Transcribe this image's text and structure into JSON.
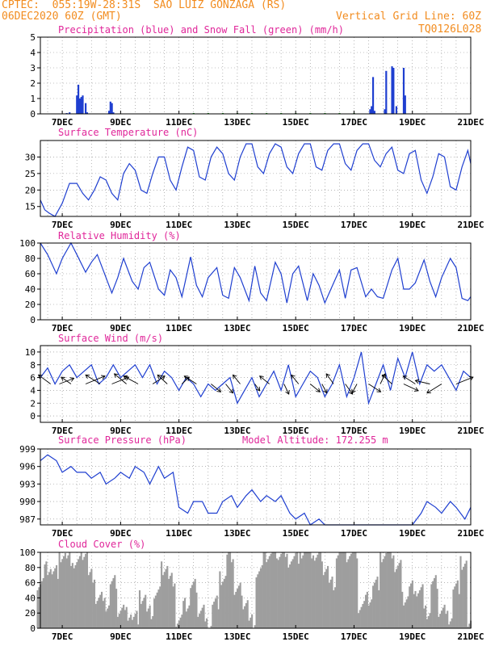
{
  "header": {
    "line1": "CPTEC:  055:19W-28:31S  SAO LUIZ GONZAGA (RS)",
    "line2": "06DEC2020 60Z (GMT)",
    "grid_note": "Vertical Grid Line: 60Z",
    "code": "TQ0126L028"
  },
  "colors": {
    "header": "#f28c1f",
    "title": "#e0279a",
    "line": "#1f3fd0",
    "snow": "#1a9a1a",
    "cloud": "#9e9e9e",
    "grid": "#888888"
  },
  "x_ticks": [
    "7DEC",
    "9DEC",
    "11DEC",
    "13DEC",
    "15DEC",
    "17DEC",
    "19DEC",
    "21DEC"
  ],
  "chart_data": [
    {
      "id": "precip",
      "type": "bar",
      "title": "Precipitation (blue) and Snow Fall (green) (mm/h)",
      "x_unit": "day (DEC 2020)",
      "xlim": [
        6.25,
        21
      ],
      "ylim": [
        0,
        5
      ],
      "yticks": [
        0,
        1,
        2,
        3,
        4,
        5
      ],
      "series": [
        {
          "name": "Precipitation",
          "color": "#1f3fd0",
          "x": [
            7.15,
            7.25,
            7.5,
            7.55,
            7.6,
            7.65,
            7.7,
            7.8,
            7.85,
            8.6,
            8.65,
            8.7,
            8.75,
            17.55,
            17.6,
            17.65,
            17.7,
            18.05,
            18.1,
            18.3,
            18.35,
            18.45,
            18.7,
            18.75
          ],
          "values": [
            0.05,
            0.1,
            1.2,
            1.9,
            1.0,
            1.1,
            1.2,
            0.7,
            0.1,
            0.2,
            0.8,
            0.7,
            0.1,
            0.3,
            0.5,
            2.4,
            0.2,
            0.3,
            2.8,
            3.1,
            3.0,
            0.5,
            3.0,
            1.2
          ]
        },
        {
          "name": "Snow Fall",
          "color": "#1a9a1a",
          "x": [
            11.5,
            12.0,
            12.5,
            13.0,
            13.5,
            14.0,
            14.5,
            15.0,
            15.5,
            16.0,
            16.5,
            17.0
          ],
          "values": [
            0.02,
            0.02,
            0.02,
            0.02,
            0.02,
            0.02,
            0.02,
            0.02,
            0.02,
            0.02,
            0.02,
            0.02
          ]
        }
      ]
    },
    {
      "id": "temp",
      "type": "line",
      "title": "Surface Temperature (nC)",
      "xlim": [
        6.25,
        21
      ],
      "ylim": [
        12,
        35
      ],
      "yticks": [
        15,
        20,
        25,
        30
      ],
      "series": [
        {
          "name": "",
          "x": [
            6.25,
            6.4,
            6.55,
            6.75,
            7.0,
            7.25,
            7.5,
            7.7,
            7.9,
            8.1,
            8.3,
            8.5,
            8.7,
            8.9,
            9.1,
            9.3,
            9.5,
            9.7,
            9.9,
            10.1,
            10.3,
            10.5,
            10.7,
            10.9,
            11.1,
            11.3,
            11.5,
            11.7,
            11.9,
            12.1,
            12.3,
            12.5,
            12.7,
            12.9,
            13.1,
            13.3,
            13.5,
            13.7,
            13.9,
            14.1,
            14.3,
            14.5,
            14.7,
            14.9,
            15.1,
            15.3,
            15.5,
            15.7,
            15.9,
            16.1,
            16.3,
            16.5,
            16.7,
            16.9,
            17.1,
            17.3,
            17.5,
            17.7,
            17.9,
            18.1,
            18.3,
            18.5,
            18.7,
            18.9,
            19.1,
            19.3,
            19.5,
            19.7,
            19.9,
            20.1,
            20.3,
            20.5,
            20.7,
            20.9,
            21.0
          ],
          "values": [
            17,
            14,
            13,
            12,
            16,
            22,
            22,
            19,
            17,
            20,
            24,
            23,
            19,
            17,
            25,
            28,
            26,
            20,
            19,
            25,
            30,
            30,
            23,
            20,
            27,
            33,
            32,
            24,
            23,
            30,
            33,
            31,
            25,
            23,
            30,
            34,
            34,
            27,
            25,
            31,
            34,
            33,
            27,
            25,
            31,
            34,
            34,
            27,
            26,
            32,
            34,
            34,
            28,
            26,
            32,
            34,
            34,
            29,
            27,
            31,
            33,
            26,
            25,
            31,
            32,
            23,
            19,
            24,
            31,
            30,
            21,
            20,
            27,
            32,
            28
          ]
        }
      ]
    },
    {
      "id": "rh",
      "type": "line",
      "title": "Relative Humidity (%)",
      "xlim": [
        6.25,
        21
      ],
      "ylim": [
        0,
        100
      ],
      "yticks": [
        0,
        20,
        40,
        60,
        80,
        100
      ],
      "series": [
        {
          "name": "",
          "x": [
            6.25,
            6.5,
            6.8,
            7.0,
            7.3,
            7.5,
            7.8,
            8.0,
            8.2,
            8.5,
            8.7,
            8.9,
            9.1,
            9.4,
            9.6,
            9.8,
            10.0,
            10.3,
            10.5,
            10.7,
            10.9,
            11.1,
            11.4,
            11.6,
            11.8,
            12.0,
            12.3,
            12.5,
            12.7,
            12.9,
            13.1,
            13.4,
            13.6,
            13.8,
            14.0,
            14.3,
            14.5,
            14.7,
            14.9,
            15.1,
            15.4,
            15.6,
            15.8,
            16.0,
            16.3,
            16.5,
            16.7,
            16.9,
            17.1,
            17.4,
            17.6,
            17.8,
            18.0,
            18.3,
            18.5,
            18.7,
            18.9,
            19.1,
            19.4,
            19.6,
            19.8,
            20.0,
            20.3,
            20.5,
            20.7,
            20.9,
            21.0
          ],
          "values": [
            100,
            85,
            60,
            80,
            100,
            85,
            62,
            75,
            85,
            55,
            35,
            55,
            80,
            50,
            40,
            68,
            75,
            40,
            32,
            65,
            55,
            30,
            82,
            45,
            30,
            55,
            68,
            32,
            28,
            68,
            55,
            25,
            70,
            35,
            25,
            75,
            60,
            22,
            60,
            70,
            25,
            60,
            45,
            22,
            48,
            65,
            28,
            65,
            68,
            30,
            40,
            30,
            28,
            65,
            80,
            40,
            40,
            48,
            78,
            50,
            30,
            55,
            80,
            68,
            28,
            25,
            30
          ]
        }
      ]
    },
    {
      "id": "wind",
      "type": "line",
      "title": "Surface Wind (m/s)",
      "xlim": [
        6.25,
        21
      ],
      "ylim": [
        -1,
        11
      ],
      "yticks": [
        0,
        2,
        4,
        6,
        8,
        10
      ],
      "series": [
        {
          "name": "",
          "x": [
            6.25,
            6.5,
            6.75,
            7.0,
            7.25,
            7.5,
            7.75,
            8.0,
            8.25,
            8.5,
            8.75,
            9.0,
            9.25,
            9.5,
            9.75,
            10.0,
            10.25,
            10.5,
            10.75,
            11.0,
            11.25,
            11.5,
            11.75,
            12.0,
            12.25,
            12.5,
            12.75,
            13.0,
            13.25,
            13.5,
            13.75,
            14.0,
            14.25,
            14.5,
            14.75,
            15.0,
            15.25,
            15.5,
            15.75,
            16.0,
            16.25,
            16.5,
            16.75,
            17.0,
            17.25,
            17.5,
            17.75,
            18.0,
            18.25,
            18.5,
            18.75,
            19.0,
            19.25,
            19.5,
            19.75,
            20.0,
            20.25,
            20.5,
            20.75,
            21.0
          ],
          "values": [
            6,
            7.5,
            5,
            7,
            8,
            6,
            7,
            8,
            5,
            6,
            8,
            6,
            7,
            8,
            6,
            8,
            5,
            7,
            6,
            4,
            6,
            5,
            3,
            5,
            4,
            5,
            6,
            2,
            4,
            6,
            3,
            5,
            7,
            4,
            8,
            3,
            5,
            7,
            6,
            3,
            5,
            8,
            3,
            6,
            10,
            2,
            5,
            8,
            4,
            9,
            6,
            10,
            5,
            8,
            7,
            8,
            6,
            4,
            7,
            6
          ]
        }
      ],
      "vectors": {
        "x": [
          6.6,
          6.9,
          7.3,
          7.8,
          8.3,
          8.7,
          9.2,
          9.6,
          10.1,
          10.6,
          11.1,
          11.6,
          12.1,
          12.6,
          13.1,
          13.6,
          14.1,
          14.6,
          15.1,
          15.5,
          15.9,
          16.3,
          16.7,
          17.1,
          17.5,
          17.9,
          18.3,
          18.7,
          19.1,
          19.6,
          20.0,
          20.5
        ],
        "dx": [
          -0.5,
          0.6,
          -0.4,
          0.8,
          -0.6,
          0.7,
          -0.5,
          -0.6,
          0.5,
          -0.4,
          0.3,
          -0.5,
          0.4,
          0.3,
          -0.3,
          0.2,
          -0.4,
          0.2,
          -0.3,
          0.4,
          0.2,
          -0.3,
          0.3,
          -0.2,
          0.5,
          0.2,
          -0.4,
          0.6,
          -0.5,
          -0.6,
          -0.6,
          0.7
        ],
        "dy": [
          0.8,
          0.5,
          0.6,
          0.7,
          0.8,
          0.6,
          0.9,
          0.7,
          0.7,
          0.8,
          0.6,
          0.7,
          -0.7,
          -0.8,
          0.8,
          -0.6,
          0.7,
          -0.9,
          0.8,
          -0.7,
          -0.8,
          0.9,
          -0.9,
          -0.8,
          -0.7,
          0.9,
          0.8,
          -0.6,
          0.7,
          0.3,
          -0.8,
          0.6
        ]
      }
    },
    {
      "id": "pressure",
      "type": "line",
      "title": "Surface Pressure (hPa)",
      "subtitle": "Model Altitude: 172.255 m",
      "xlim": [
        6.25,
        21
      ],
      "ylim": [
        986,
        999
      ],
      "yticks": [
        987,
        990,
        993,
        996,
        999
      ],
      "series": [
        {
          "name": "",
          "x": [
            6.25,
            6.5,
            6.8,
            7.0,
            7.3,
            7.5,
            7.8,
            8.0,
            8.3,
            8.5,
            8.8,
            9.0,
            9.3,
            9.5,
            9.8,
            10.0,
            10.3,
            10.5,
            10.8,
            11.0,
            11.3,
            11.5,
            11.8,
            12.0,
            12.3,
            12.5,
            12.8,
            13.0,
            13.3,
            13.5,
            13.8,
            14.0,
            14.3,
            14.5,
            14.8,
            15.0,
            15.3,
            15.5,
            15.8,
            16.0,
            16.3,
            16.5,
            16.8,
            17.0,
            17.3,
            17.5,
            17.8,
            18.0,
            18.3,
            18.5,
            18.8,
            19.0,
            19.3,
            19.5,
            19.8,
            20.0,
            20.3,
            20.5,
            20.8,
            21.0
          ],
          "values": [
            997,
            998,
            997,
            995,
            996,
            995,
            995,
            994,
            995,
            993,
            994,
            995,
            994,
            996,
            995,
            993,
            996,
            994,
            995,
            989,
            988,
            990,
            990,
            988,
            988,
            990,
            991,
            989,
            991,
            992,
            990,
            991,
            990,
            991,
            988,
            987,
            988,
            986,
            987,
            986,
            986,
            986,
            986,
            986,
            986,
            986,
            986,
            986,
            986,
            986,
            986,
            986,
            988,
            990,
            989,
            988,
            990,
            989,
            987,
            989
          ]
        }
      ]
    },
    {
      "id": "cloud",
      "type": "area",
      "title": "Cloud Cover (%)",
      "xlim": [
        6.25,
        21
      ],
      "ylim": [
        0,
        100
      ],
      "yticks": [
        0,
        20,
        40,
        60,
        80,
        100
      ],
      "series": [
        {
          "name": "",
          "x": [
            6.25,
            6.5,
            6.75,
            7.0,
            7.25,
            7.5,
            7.75,
            8.0,
            8.25,
            8.5,
            8.75,
            9.0,
            9.25,
            9.5,
            9.75,
            10.0,
            10.25,
            10.5,
            10.75,
            11.0,
            11.25,
            11.5,
            11.75,
            12.0,
            12.25,
            12.5,
            12.75,
            13.0,
            13.25,
            13.5,
            13.75,
            14.0,
            14.25,
            14.5,
            14.75,
            15.0,
            15.25,
            15.5,
            15.75,
            16.0,
            16.25,
            16.5,
            16.75,
            17.0,
            17.25,
            17.5,
            17.75,
            18.0,
            18.25,
            18.5,
            18.75,
            19.0,
            19.25,
            19.5,
            19.75,
            20.0,
            20.25,
            20.5,
            20.75,
            21.0
          ],
          "values": [
            60,
            80,
            75,
            95,
            90,
            85,
            100,
            70,
            40,
            30,
            60,
            25,
            20,
            15,
            40,
            20,
            45,
            80,
            65,
            10,
            30,
            55,
            25,
            5,
            35,
            65,
            95,
            50,
            35,
            10,
            75,
            95,
            100,
            100,
            90,
            95,
            100,
            100,
            95,
            80,
            60,
            100,
            95,
            100,
            30,
            40,
            60,
            95,
            100,
            80,
            40,
            55,
            50,
            20,
            60,
            25,
            15,
            55,
            85,
            0
          ]
        }
      ]
    }
  ]
}
